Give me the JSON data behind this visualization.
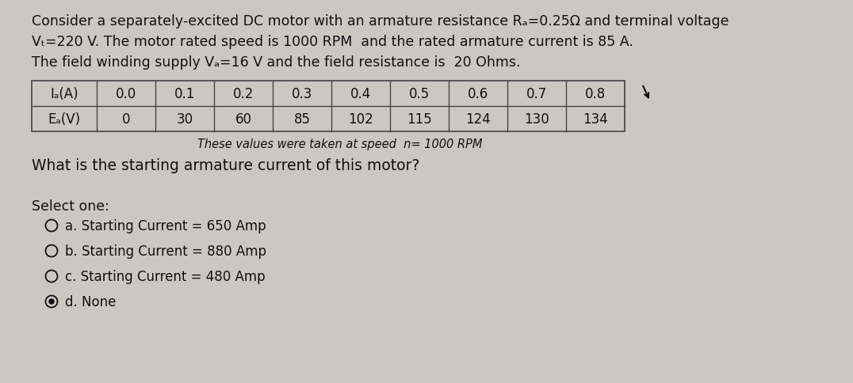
{
  "background_color": "#cbc8c2",
  "title_lines": [
    "Consider a separately-excited DC motor with an armature resistance Rₐ=0.25Ω and terminal voltage",
    "Vₜ=220 V. The motor rated speed is 1000 RPM  and the rated armature current is 85 A.",
    "The field winding supply Vₐ=16 V and the field resistance is  20 Ohms."
  ],
  "table_row1": [
    "Iₐ(A)",
    "0.0",
    "0.1",
    "0.2",
    "0.3",
    "0.4",
    "0.5",
    "0.6",
    "0.7",
    "0.8"
  ],
  "table_row2": [
    "Eₐ(V)",
    "0",
    "30",
    "60",
    "85",
    "102",
    "115",
    "124",
    "130",
    "134"
  ],
  "table_note": "These values were taken at speed  n= 1000 RPM",
  "question": "What is the starting armature current of this motor?",
  "select_one": "Select one:",
  "options": [
    "a. Starting Current = 650 Amp",
    "b. Starting Current = 880 Amp",
    "c. Starting Current = 480 Amp",
    "d. None"
  ],
  "text_color": "#111111",
  "table_border_color": "#444444",
  "font_size_body": 12.5,
  "font_size_table": 12.0,
  "font_size_note": 10.5,
  "font_size_options": 12.0
}
